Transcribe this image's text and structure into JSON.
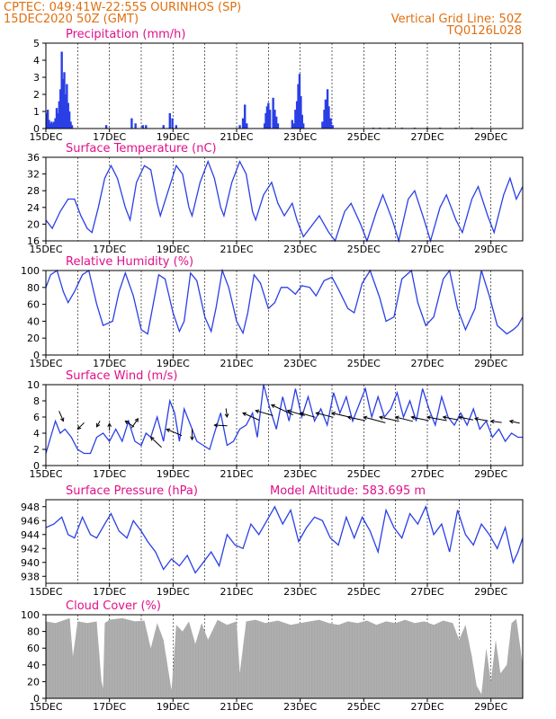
{
  "header": {
    "line1": "CPTEC:   049:41W-22:55S   OURINHOS (SP)",
    "line2": "15DEC2020 50Z (GMT)",
    "grid_note": "Vertical Grid Line: 50Z",
    "model_id": "TQ0126L028"
  },
  "colors": {
    "header": "#e07010",
    "title": "#e0108a",
    "series": "#2a3fe6",
    "cloud": "#a9a9a9"
  },
  "x_axis": {
    "labels": [
      "15DEC",
      "17DEC",
      "19DEC",
      "21DEC",
      "23DEC",
      "25DEC",
      "27DEC",
      "29DEC"
    ],
    "start_day": 15,
    "end_day": 30
  },
  "chart_data": [
    {
      "id": "precip",
      "type": "bar",
      "title": "Precipitation (mm/h)",
      "ylim": [
        0,
        5
      ],
      "yticks": [
        0,
        1,
        2,
        3,
        4,
        5
      ],
      "bars": [
        [
          15.02,
          0.9
        ],
        [
          15.06,
          1.1
        ],
        [
          15.1,
          0.5
        ],
        [
          15.14,
          0.3
        ],
        [
          15.18,
          0.4
        ],
        [
          15.22,
          0.3
        ],
        [
          15.26,
          0.4
        ],
        [
          15.3,
          0.6
        ],
        [
          15.34,
          1.2
        ],
        [
          15.38,
          0.9
        ],
        [
          15.42,
          1.6
        ],
        [
          15.46,
          2.3
        ],
        [
          15.5,
          4.5
        ],
        [
          15.54,
          2.9
        ],
        [
          15.58,
          3.3
        ],
        [
          15.62,
          2.0
        ],
        [
          15.66,
          2.6
        ],
        [
          15.7,
          1.5
        ],
        [
          15.74,
          1.0
        ],
        [
          15.78,
          0.4
        ],
        [
          15.82,
          0.2
        ],
        [
          16.9,
          0.2
        ],
        [
          17.7,
          0.6
        ],
        [
          17.82,
          0.3
        ],
        [
          18.05,
          0.2
        ],
        [
          18.15,
          0.2
        ],
        [
          18.7,
          0.2
        ],
        [
          18.9,
          0.9
        ],
        [
          18.98,
          0.6
        ],
        [
          19.1,
          0.2
        ],
        [
          21.1,
          0.2
        ],
        [
          21.2,
          0.6
        ],
        [
          21.26,
          1.4
        ],
        [
          21.32,
          0.3
        ],
        [
          21.88,
          0.3
        ],
        [
          21.92,
          0.9
        ],
        [
          21.96,
          1.3
        ],
        [
          22.0,
          1.5
        ],
        [
          22.05,
          1.1
        ],
        [
          22.15,
          1.8
        ],
        [
          22.2,
          1.1
        ],
        [
          22.25,
          0.7
        ],
        [
          22.3,
          0.3
        ],
        [
          22.75,
          0.5
        ],
        [
          22.8,
          0.3
        ],
        [
          22.85,
          1.1
        ],
        [
          22.9,
          1.6
        ],
        [
          22.94,
          2.6
        ],
        [
          22.98,
          3.2
        ],
        [
          23.02,
          1.9
        ],
        [
          23.06,
          0.8
        ],
        [
          23.1,
          0.3
        ],
        [
          23.7,
          0.4
        ],
        [
          23.76,
          1.1
        ],
        [
          23.8,
          1.7
        ],
        [
          23.86,
          2.3
        ],
        [
          23.9,
          1.3
        ],
        [
          23.96,
          0.6
        ],
        [
          24.02,
          0.2
        ],
        [
          25.3,
          0.05
        ],
        [
          25.5,
          0.05
        ],
        [
          25.8,
          0.05
        ],
        [
          26.2,
          0.05
        ],
        [
          26.6,
          0.05
        ],
        [
          27.0,
          0.05
        ],
        [
          27.4,
          0.05
        ],
        [
          27.9,
          0.05
        ],
        [
          28.4,
          0.05
        ]
      ]
    },
    {
      "id": "temp",
      "type": "line",
      "title": "Surface Temperature (nC)",
      "ylim": [
        16,
        36
      ],
      "yticks": [
        16,
        20,
        24,
        28,
        32,
        36
      ],
      "x": [
        15.0,
        15.2,
        15.45,
        15.7,
        15.9,
        16.1,
        16.3,
        16.45,
        16.65,
        16.85,
        17.05,
        17.25,
        17.5,
        17.65,
        17.85,
        18.1,
        18.3,
        18.5,
        18.6,
        18.85,
        19.1,
        19.3,
        19.5,
        19.6,
        19.85,
        20.1,
        20.3,
        20.5,
        20.6,
        20.85,
        21.1,
        21.3,
        21.5,
        21.6,
        21.85,
        22.1,
        22.3,
        22.5,
        22.75,
        22.9,
        23.1,
        23.4,
        23.6,
        23.9,
        24.1,
        24.4,
        24.6,
        24.9,
        25.1,
        25.4,
        25.6,
        25.9,
        26.1,
        26.4,
        26.6,
        26.9,
        27.1,
        27.4,
        27.6,
        27.9,
        28.1,
        28.4,
        28.6,
        28.9,
        29.1,
        29.4,
        29.6,
        29.8,
        30.0
      ],
      "values": [
        21,
        19,
        23,
        26,
        26,
        22,
        19,
        18,
        24,
        31,
        34,
        31,
        24,
        21,
        30,
        34,
        33,
        25,
        22,
        28,
        34,
        32,
        24,
        22,
        30,
        35,
        31,
        24,
        22,
        30,
        35,
        32,
        23,
        21,
        27,
        30,
        25,
        22,
        25,
        21,
        17,
        20,
        22,
        18,
        16,
        23,
        25,
        20,
        16,
        23,
        27,
        21,
        16,
        26,
        28,
        21,
        16,
        24,
        27,
        21,
        18,
        26,
        29,
        22,
        18,
        27,
        31,
        26,
        29
      ]
    },
    {
      "id": "rh",
      "type": "line",
      "title": "Relative Humidity (%)",
      "ylim": [
        0,
        100
      ],
      "yticks": [
        0,
        20,
        40,
        60,
        80,
        100
      ],
      "x": [
        15.0,
        15.15,
        15.35,
        15.55,
        15.7,
        15.9,
        16.15,
        16.35,
        16.6,
        16.8,
        17.1,
        17.3,
        17.5,
        17.75,
        18.0,
        18.2,
        18.35,
        18.55,
        18.75,
        19.0,
        19.2,
        19.35,
        19.55,
        19.75,
        20.0,
        20.2,
        20.35,
        20.55,
        20.75,
        21.0,
        21.2,
        21.35,
        21.55,
        21.75,
        22.0,
        22.2,
        22.4,
        22.6,
        22.85,
        23.05,
        23.3,
        23.5,
        23.75,
        24.0,
        24.2,
        24.5,
        24.7,
        24.95,
        25.2,
        25.5,
        25.7,
        25.95,
        26.2,
        26.5,
        26.7,
        26.95,
        27.2,
        27.5,
        27.7,
        27.95,
        28.2,
        28.5,
        28.7,
        28.95,
        29.2,
        29.5,
        29.7,
        29.85,
        30.0
      ],
      "values": [
        80,
        95,
        100,
        75,
        62,
        75,
        95,
        100,
        60,
        35,
        40,
        75,
        97,
        70,
        30,
        25,
        55,
        95,
        90,
        50,
        28,
        40,
        97,
        88,
        45,
        28,
        55,
        100,
        80,
        40,
        26,
        50,
        95,
        85,
        55,
        62,
        80,
        80,
        72,
        82,
        80,
        70,
        88,
        92,
        78,
        55,
        50,
        85,
        100,
        68,
        40,
        45,
        90,
        100,
        62,
        35,
        45,
        90,
        100,
        55,
        30,
        55,
        100,
        70,
        35,
        25,
        30,
        35,
        45
      ]
    },
    {
      "id": "wind",
      "type": "line",
      "title": "Surface Wind (m/s)",
      "ylim": [
        0,
        10
      ],
      "yticks": [
        0,
        2,
        4,
        6,
        8,
        10
      ],
      "x": [
        15.0,
        15.15,
        15.3,
        15.45,
        15.6,
        15.8,
        16.0,
        16.2,
        16.4,
        16.6,
        16.8,
        17.0,
        17.2,
        17.4,
        17.6,
        17.8,
        18.0,
        18.15,
        18.3,
        18.5,
        18.7,
        18.9,
        19.05,
        19.2,
        19.35,
        19.55,
        19.75,
        19.95,
        20.15,
        20.3,
        20.5,
        20.7,
        20.9,
        21.1,
        21.3,
        21.5,
        21.65,
        21.85,
        22.05,
        22.25,
        22.45,
        22.65,
        22.85,
        23.05,
        23.25,
        23.45,
        23.65,
        23.85,
        24.05,
        24.25,
        24.45,
        24.65,
        24.85,
        25.05,
        25.25,
        25.45,
        25.65,
        25.85,
        26.05,
        26.25,
        26.45,
        26.65,
        26.85,
        27.05,
        27.25,
        27.45,
        27.65,
        27.85,
        28.05,
        28.25,
        28.45,
        28.65,
        28.85,
        29.05,
        29.25,
        29.45,
        29.65,
        29.85,
        30.0
      ],
      "values": [
        1.5,
        3.5,
        5.5,
        4.0,
        4.5,
        3.5,
        2.0,
        1.5,
        1.5,
        3.5,
        4.0,
        3.0,
        4.5,
        3.0,
        5.5,
        3.0,
        2.5,
        4.0,
        3.5,
        6.0,
        3.0,
        8.0,
        6.5,
        3.0,
        7.0,
        5.0,
        3.0,
        2.5,
        2.0,
        4.0,
        6.5,
        2.5,
        3.0,
        4.5,
        5.0,
        6.5,
        3.5,
        10.0,
        7.0,
        4.5,
        8.5,
        5.5,
        9.5,
        6.0,
        8.5,
        5.5,
        7.0,
        5.0,
        9.0,
        6.5,
        8.5,
        5.5,
        7.5,
        9.5,
        6.0,
        8.5,
        6.0,
        7.0,
        9.0,
        6.0,
        8.0,
        5.5,
        9.5,
        7.0,
        5.0,
        8.5,
        6.0,
        5.0,
        6.5,
        5.0,
        7.0,
        4.5,
        5.5,
        3.5,
        4.5,
        3.0,
        4.0,
        3.5,
        3.5
      ]
    },
    {
      "id": "pres",
      "type": "line",
      "title": "Surface Pressure (hPa)",
      "note": "Model Altitude: 583.695 m",
      "ylim": [
        937,
        949
      ],
      "yticks": [
        938,
        940,
        942,
        944,
        946,
        948
      ],
      "x": [
        15.0,
        15.25,
        15.5,
        15.7,
        15.9,
        16.15,
        16.4,
        16.6,
        16.85,
        17.05,
        17.3,
        17.55,
        17.75,
        18.0,
        18.2,
        18.45,
        18.7,
        18.95,
        19.2,
        19.45,
        19.7,
        19.95,
        20.2,
        20.45,
        20.7,
        20.95,
        21.2,
        21.45,
        21.7,
        21.95,
        22.2,
        22.45,
        22.7,
        22.95,
        23.2,
        23.45,
        23.7,
        23.95,
        24.2,
        24.45,
        24.7,
        24.95,
        25.2,
        25.45,
        25.7,
        25.95,
        26.2,
        26.45,
        26.7,
        26.95,
        27.2,
        27.45,
        27.7,
        27.95,
        28.2,
        28.45,
        28.7,
        28.95,
        29.2,
        29.45,
        29.7,
        29.85,
        30.0
      ],
      "values": [
        945,
        945.5,
        946.5,
        944,
        943.5,
        946.5,
        944,
        943.5,
        945.5,
        947,
        944.5,
        943.5,
        946,
        944.5,
        943,
        941.5,
        939,
        940.5,
        939.5,
        941,
        938.5,
        940,
        941.5,
        939.5,
        944,
        942.5,
        942,
        945.5,
        944,
        946,
        948,
        945.5,
        947.5,
        943,
        945,
        946.5,
        946,
        943.5,
        942.5,
        946.5,
        943.5,
        946.5,
        944.5,
        941.5,
        947.5,
        945,
        943.5,
        947,
        945.5,
        948,
        944,
        945.5,
        941.5,
        947.5,
        944,
        942.5,
        945.5,
        944,
        942,
        945,
        940,
        941.5,
        943.5
      ]
    },
    {
      "id": "cloud",
      "type": "area",
      "title": "Cloud Cover (%)",
      "ylim": [
        0,
        100
      ],
      "yticks": [
        0,
        20,
        40,
        60,
        80,
        100
      ],
      "x": [
        15.0,
        15.3,
        15.6,
        15.75,
        15.85,
        16.0,
        16.3,
        16.6,
        16.75,
        16.8,
        16.85,
        17.0,
        17.4,
        17.8,
        18.1,
        18.3,
        18.5,
        18.7,
        18.95,
        19.1,
        19.3,
        19.5,
        19.7,
        19.9,
        20.1,
        20.4,
        20.7,
        21.0,
        21.1,
        21.3,
        21.6,
        21.9,
        22.3,
        22.7,
        23.0,
        23.3,
        23.6,
        23.9,
        24.2,
        24.5,
        24.8,
        25.1,
        25.4,
        25.7,
        26.0,
        26.3,
        26.6,
        26.9,
        27.2,
        27.5,
        27.8,
        28.0,
        28.2,
        28.4,
        28.55,
        28.7,
        28.85,
        29.0,
        29.15,
        29.3,
        29.5,
        29.65,
        29.8,
        30.0
      ],
      "values": [
        92,
        90,
        94,
        96,
        50,
        92,
        90,
        92,
        20,
        12,
        90,
        94,
        96,
        92,
        93,
        60,
        90,
        70,
        10,
        88,
        80,
        92,
        65,
        90,
        70,
        94,
        88,
        92,
        30,
        92,
        94,
        90,
        93,
        88,
        90,
        92,
        94,
        90,
        88,
        92,
        90,
        93,
        88,
        92,
        90,
        94,
        90,
        92,
        88,
        93,
        90,
        70,
        88,
        50,
        15,
        5,
        60,
        20,
        70,
        30,
        40,
        90,
        95,
        40
      ]
    }
  ]
}
